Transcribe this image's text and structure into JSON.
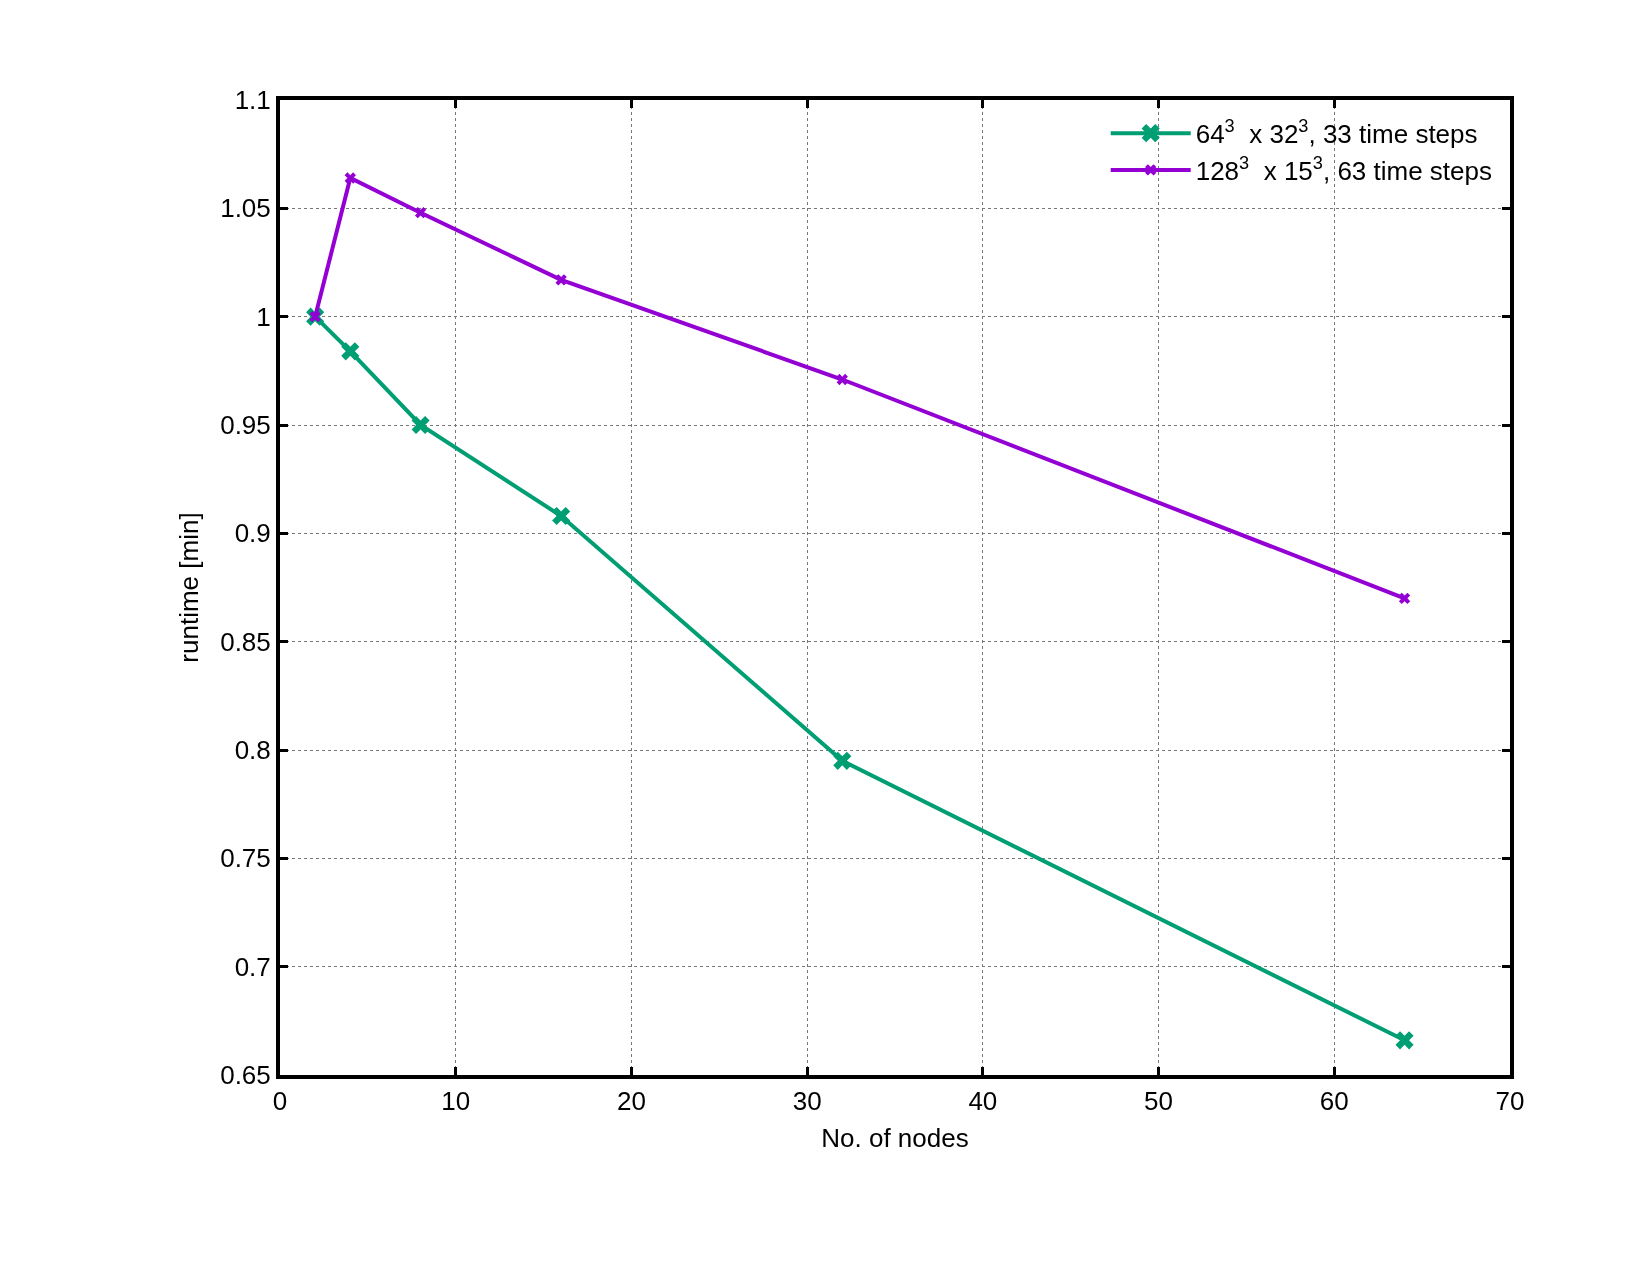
{
  "chart_data": {
    "type": "line",
    "xlabel": "No. of nodes",
    "ylabel": "runtime [min]",
    "xlim": [
      0,
      70
    ],
    "xticks": [
      0,
      10,
      20,
      30,
      40,
      50,
      60,
      70
    ],
    "ylim": [
      0.65,
      1.1
    ],
    "yticks": [
      0.65,
      0.7,
      0.75,
      0.8,
      0.85,
      0.9,
      0.95,
      1,
      1.05,
      1.1
    ],
    "grid": true,
    "legend": "top right",
    "marker": "cross",
    "line_style": "solid",
    "series": [
      {
        "name": "64$^{3}$  x 32$^{3}$, 33 time steps",
        "color": "#009e73",
        "x": [
          2,
          4,
          8,
          16,
          32,
          64
        ],
        "values": [
          1.0,
          0.984,
          0.95,
          0.908,
          0.795,
          0.666
        ]
      },
      {
        "name": "128$^{3}$  x 15$^{3}$, 63 time steps",
        "color": "#9400d3",
        "x": [
          2,
          4,
          8,
          16,
          32,
          64
        ],
        "values": [
          1.0,
          1.064,
          1.048,
          1.017,
          0.971,
          0.87
        ]
      }
    ]
  }
}
